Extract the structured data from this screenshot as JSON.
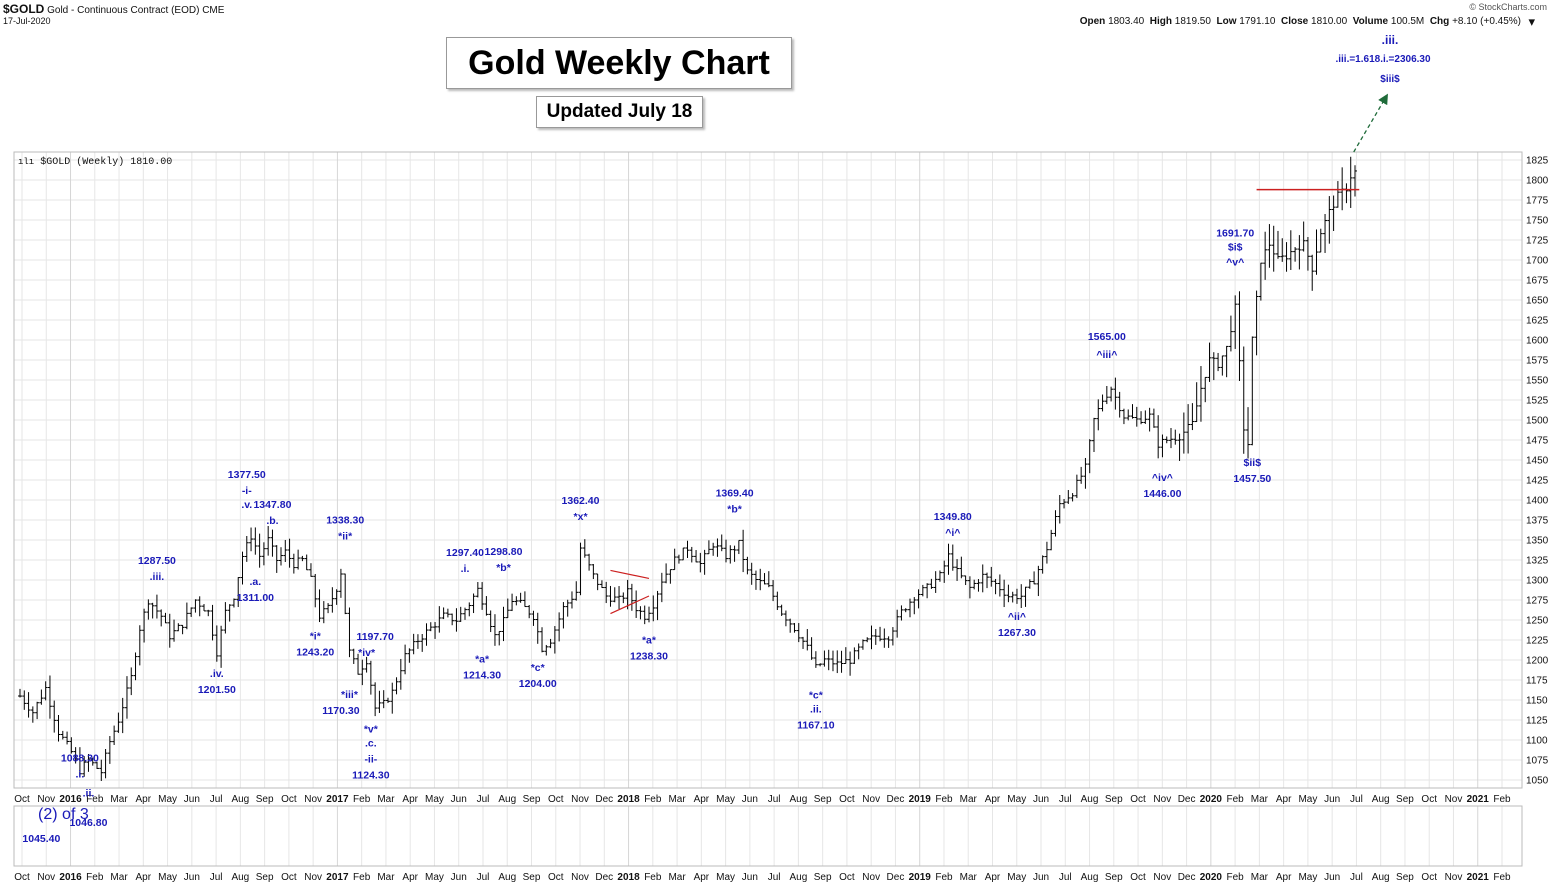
{
  "header": {
    "symbol": "$GOLD",
    "name": "Gold - Continuous Contract (EOD)",
    "exchange": "CME",
    "date": "17-Jul-2020",
    "brand": "© StockCharts.com",
    "open_label": "Open",
    "open": "1803.40",
    "high_label": "High",
    "high": "1819.50",
    "low_label": "Low",
    "low": "1791.10",
    "close_label": "Close",
    "close": "1810.00",
    "volume_label": "Volume",
    "volume": "100.5M",
    "chg_label": "Chg",
    "chg": "+8.10 (+0.45%)"
  },
  "chart_title": "Gold Weekly Chart",
  "updated": "Updated July 18",
  "legend": "$GOLD (Weekly) 1810.00",
  "colors": {
    "annotation": "#1a1ab8",
    "bar": "#000000",
    "grid": "#e6e6e6",
    "resistance": "#cc2020",
    "projection": "#1f6b3a"
  },
  "chart_data": {
    "type": "ohlc",
    "title": "Gold Weekly Chart",
    "series_name": "$GOLD (Weekly) 1810.00",
    "ylim": [
      1040,
      1835
    ],
    "yticks": [
      1050,
      1075,
      1100,
      1125,
      1150,
      1175,
      1200,
      1225,
      1250,
      1275,
      1300,
      1325,
      1350,
      1375,
      1400,
      1425,
      1450,
      1475,
      1500,
      1525,
      1550,
      1575,
      1600,
      1625,
      1650,
      1675,
      1700,
      1725,
      1750,
      1775,
      1800,
      1825
    ],
    "xticks": [
      "Oct",
      "Nov",
      "2016",
      "Feb",
      "Mar",
      "Apr",
      "May",
      "Jun",
      "Jul",
      "Aug",
      "Sep",
      "Oct",
      "Nov",
      "2017",
      "Feb",
      "Mar",
      "Apr",
      "May",
      "Jun",
      "Jul",
      "Aug",
      "Sep",
      "Oct",
      "Nov",
      "Dec",
      "2018",
      "Feb",
      "Mar",
      "Apr",
      "May",
      "Jun",
      "Jul",
      "Aug",
      "Sep",
      "Oct",
      "Nov",
      "Dec",
      "2019",
      "Feb",
      "Mar",
      "Apr",
      "May",
      "Jun",
      "Jul",
      "Aug",
      "Sep",
      "Oct",
      "Nov",
      "Dec",
      "2020",
      "Feb",
      "Mar",
      "Apr",
      "May",
      "Jun",
      "Jul",
      "Aug",
      "Sep",
      "Oct",
      "Nov",
      "2021",
      "Feb"
    ],
    "waypoints": [
      [
        0,
        1155
      ],
      [
        3,
        1135
      ],
      [
        6,
        1165
      ],
      [
        9,
        1110
      ],
      [
        12,
        1085
      ],
      [
        14,
        1062
      ],
      [
        16,
        1075
      ],
      [
        19,
        1060
      ],
      [
        21,
        1098
      ],
      [
        23,
        1125
      ],
      [
        26,
        1178
      ],
      [
        28,
        1240
      ],
      [
        30,
        1275
      ],
      [
        33,
        1255
      ],
      [
        35,
        1230
      ],
      [
        38,
        1245
      ],
      [
        41,
        1275
      ],
      [
        44,
        1260
      ],
      [
        46,
        1210
      ],
      [
        48,
        1260
      ],
      [
        50,
        1280
      ],
      [
        52,
        1330
      ],
      [
        54,
        1355
      ],
      [
        56,
        1330
      ],
      [
        58,
        1350
      ],
      [
        60,
        1325
      ],
      [
        62,
        1335
      ],
      [
        64,
        1320
      ],
      [
        66,
        1325
      ],
      [
        68,
        1300
      ],
      [
        70,
        1255
      ],
      [
        72,
        1265
      ],
      [
        74,
        1290
      ],
      [
        75,
        1310
      ],
      [
        77,
        1210
      ],
      [
        79,
        1185
      ],
      [
        81,
        1200
      ],
      [
        83,
        1140
      ],
      [
        85,
        1145
      ],
      [
        87,
        1160
      ],
      [
        90,
        1205
      ],
      [
        93,
        1225
      ],
      [
        96,
        1240
      ],
      [
        99,
        1255
      ],
      [
        102,
        1250
      ],
      [
        105,
        1270
      ],
      [
        107,
        1288
      ],
      [
        109,
        1262
      ],
      [
        111,
        1230
      ],
      [
        113,
        1248
      ],
      [
        115,
        1275
      ],
      [
        117,
        1270
      ],
      [
        120,
        1255
      ],
      [
        122,
        1215
      ],
      [
        124,
        1225
      ],
      [
        127,
        1265
      ],
      [
        130,
        1285
      ],
      [
        131,
        1340
      ],
      [
        134,
        1305
      ],
      [
        137,
        1280
      ],
      [
        140,
        1275
      ],
      [
        142,
        1285
      ],
      [
        144,
        1265
      ],
      [
        146,
        1255
      ],
      [
        148,
        1270
      ],
      [
        150,
        1300
      ],
      [
        153,
        1325
      ],
      [
        156,
        1340
      ],
      [
        159,
        1320
      ],
      [
        162,
        1345
      ],
      [
        165,
        1330
      ],
      [
        168,
        1345
      ],
      [
        170,
        1310
      ],
      [
        172,
        1300
      ],
      [
        175,
        1290
      ],
      [
        178,
        1260
      ],
      [
        181,
        1240
      ],
      [
        184,
        1215
      ],
      [
        186,
        1190
      ],
      [
        188,
        1200
      ],
      [
        191,
        1195
      ],
      [
        194,
        1200
      ],
      [
        197,
        1220
      ],
      [
        200,
        1230
      ],
      [
        203,
        1230
      ],
      [
        206,
        1260
      ],
      [
        209,
        1280
      ],
      [
        212,
        1290
      ],
      [
        215,
        1305
      ],
      [
        217,
        1330
      ],
      [
        219,
        1310
      ],
      [
        222,
        1290
      ],
      [
        225,
        1305
      ],
      [
        228,
        1295
      ],
      [
        231,
        1280
      ],
      [
        234,
        1280
      ],
      [
        237,
        1300
      ],
      [
        240,
        1340
      ],
      [
        243,
        1395
      ],
      [
        246,
        1410
      ],
      [
        249,
        1440
      ],
      [
        251,
        1500
      ],
      [
        253,
        1525
      ],
      [
        255,
        1540
      ],
      [
        258,
        1505
      ],
      [
        261,
        1500
      ],
      [
        264,
        1505
      ],
      [
        266,
        1470
      ],
      [
        268,
        1475
      ],
      [
        271,
        1480
      ],
      [
        274,
        1495
      ],
      [
        276,
        1540
      ],
      [
        278,
        1575
      ],
      [
        280,
        1570
      ],
      [
        282,
        1590
      ],
      [
        284,
        1640
      ],
      [
        285,
        1570
      ],
      [
        286,
        1490
      ],
      [
        287,
        1470
      ],
      [
        288,
        1600
      ],
      [
        290,
        1700
      ],
      [
        292,
        1720
      ],
      [
        294,
        1700
      ],
      [
        296,
        1705
      ],
      [
        298,
        1715
      ],
      [
        300,
        1720
      ],
      [
        302,
        1690
      ],
      [
        304,
        1735
      ],
      [
        306,
        1760
      ],
      [
        308,
        1780
      ],
      [
        310,
        1790
      ],
      [
        311,
        1805
      ],
      [
        312,
        1810
      ]
    ],
    "annotations": [
      {
        "text": "1088.30",
        "price": 1088.3,
        "week": 14,
        "dir": "below",
        "offset": 8
      },
      {
        "text": ".i.",
        "price": 1088.3,
        "week": 14,
        "dir": "below",
        "offset": 24
      },
      {
        "text": ".ii.",
        "price": 1046.8,
        "week": 16,
        "dir": "below",
        "offset": 10
      },
      {
        "text": "1046.80",
        "price": 1046.8,
        "week": 16,
        "dir": "below",
        "offset": 28
      },
      {
        "text": "(2) of 3",
        "price": 1045.4,
        "week": 5,
        "dir": "below",
        "offset": 26,
        "big": true
      },
      {
        "text": "1045.40",
        "price": 1045.4,
        "week": 5,
        "dir": "below",
        "offset": 44
      },
      {
        "text": "1287.50",
        "price": 1287.5,
        "week": 32,
        "dir": "above",
        "offset": 34
      },
      {
        "text": ".iii.",
        "price": 1287.5,
        "week": 32,
        "dir": "above",
        "offset": 18
      },
      {
        "text": ".iv.",
        "price": 1201.5,
        "week": 46,
        "dir": "below",
        "offset": 14
      },
      {
        "text": "1201.50",
        "price": 1201.5,
        "week": 46,
        "dir": "below",
        "offset": 30
      },
      {
        "text": "1377.50",
        "price": 1377.5,
        "week": 53,
        "dir": "above",
        "offset": 48
      },
      {
        "text": "-i-",
        "price": 1377.5,
        "week": 53,
        "dir": "above",
        "offset": 32
      },
      {
        "text": ".v.",
        "price": 1377.5,
        "week": 53,
        "dir": "above",
        "offset": 18
      },
      {
        "text": "1347.80",
        "price": 1347.8,
        "week": 59,
        "dir": "above",
        "offset": 42
      },
      {
        "text": ".b.",
        "price": 1347.8,
        "week": 59,
        "dir": "above",
        "offset": 26
      },
      {
        "text": ".a.",
        "price": 1311,
        "week": 55,
        "dir": "below",
        "offset": 10
      },
      {
        "text": "1311.00",
        "price": 1311,
        "week": 55,
        "dir": "below",
        "offset": 26
      },
      {
        "text": "1338.30",
        "price": 1338.3,
        "week": 76,
        "dir": "above",
        "offset": 34
      },
      {
        "text": "*ii*",
        "price": 1338.3,
        "week": 76,
        "dir": "above",
        "offset": 18
      },
      {
        "text": "*i*",
        "price": 1243.2,
        "week": 69,
        "dir": "below",
        "offset": 10
      },
      {
        "text": "1243.20",
        "price": 1243.2,
        "week": 69,
        "dir": "below",
        "offset": 26
      },
      {
        "text": "1197.70",
        "price": 1197.7,
        "week": 83,
        "dir": "above",
        "offset": 30
      },
      {
        "text": "*iv*",
        "price": 1197.7,
        "week": 81,
        "dir": "above",
        "offset": 14
      },
      {
        "text": "*iii*",
        "price": 1170.3,
        "week": 77,
        "dir": "below",
        "offset": 10
      },
      {
        "text": "1170.30",
        "price": 1170.3,
        "week": 75,
        "dir": "below",
        "offset": 26
      },
      {
        "text": "*v*",
        "price": 1124.3,
        "week": 82,
        "dir": "below",
        "offset": 8
      },
      {
        "text": ".c.",
        "price": 1124.3,
        "week": 82,
        "dir": "below",
        "offset": 22
      },
      {
        "text": "-ii-",
        "price": 1124.3,
        "week": 82,
        "dir": "below",
        "offset": 38
      },
      {
        "text": "1124.30",
        "price": 1124.3,
        "week": 82,
        "dir": "below",
        "offset": 54
      },
      {
        "text": "1297.40",
        "price": 1297.4,
        "week": 104,
        "dir": "above",
        "offset": 34
      },
      {
        "text": ".i.",
        "price": 1297.4,
        "week": 104,
        "dir": "above",
        "offset": 18
      },
      {
        "text": "1298.80",
        "price": 1298.8,
        "week": 113,
        "dir": "above",
        "offset": 34
      },
      {
        "text": "*b*",
        "price": 1298.8,
        "week": 113,
        "dir": "above",
        "offset": 18
      },
      {
        "text": "*a*",
        "price": 1214.3,
        "week": 108,
        "dir": "below",
        "offset": 10
      },
      {
        "text": "1214.30",
        "price": 1214.3,
        "week": 108,
        "dir": "below",
        "offset": 26
      },
      {
        "text": "*c*",
        "price": 1204,
        "week": 121,
        "dir": "below",
        "offset": 10
      },
      {
        "text": "1204.00",
        "price": 1204,
        "week": 121,
        "dir": "below",
        "offset": 26
      },
      {
        "text": "1362.40",
        "price": 1362.4,
        "week": 131,
        "dir": "above",
        "offset": 34
      },
      {
        "text": "*x*",
        "price": 1362.4,
        "week": 131,
        "dir": "above",
        "offset": 18
      },
      {
        "text": "*a*",
        "price": 1238.3,
        "week": 147,
        "dir": "below",
        "offset": 10
      },
      {
        "text": "1238.30",
        "price": 1238.3,
        "week": 147,
        "dir": "below",
        "offset": 26
      },
      {
        "text": "1369.40",
        "price": 1369.4,
        "week": 167,
        "dir": "above",
        "offset": 36
      },
      {
        "text": "*b*",
        "price": 1369.4,
        "week": 167,
        "dir": "above",
        "offset": 20
      },
      {
        "text": "*c*",
        "price": 1167.1,
        "week": 186,
        "dir": "below",
        "offset": 8
      },
      {
        "text": ".ii.",
        "price": 1167.1,
        "week": 186,
        "dir": "below",
        "offset": 22
      },
      {
        "text": "1167.10",
        "price": 1167.1,
        "week": 186,
        "dir": "below",
        "offset": 38
      },
      {
        "text": "1349.80",
        "price": 1349.8,
        "week": 218,
        "dir": "above",
        "offset": 28
      },
      {
        "text": "^i^",
        "price": 1349.8,
        "week": 218,
        "dir": "above",
        "offset": 12
      },
      {
        "text": "^ii^",
        "price": 1267.3,
        "week": 233,
        "dir": "below",
        "offset": 10
      },
      {
        "text": "1267.30",
        "price": 1267.3,
        "week": 233,
        "dir": "below",
        "offset": 26
      },
      {
        "text": "1565.00",
        "price": 1565,
        "week": 254,
        "dir": "above",
        "offset": 36
      },
      {
        "text": "^iii^",
        "price": 1565,
        "week": 254,
        "dir": "above",
        "offset": 18
      },
      {
        "text": "^iv^",
        "price": 1446,
        "week": 267,
        "dir": "below",
        "offset": 14
      },
      {
        "text": "1446.00",
        "price": 1446,
        "week": 267,
        "dir": "below",
        "offset": 30
      },
      {
        "text": "1691.70",
        "price": 1691.7,
        "week": 284,
        "dir": "above",
        "offset": 38
      },
      {
        "text": "$i$",
        "price": 1691.7,
        "week": 284,
        "dir": "above",
        "offset": 24
      },
      {
        "text": "^v^",
        "price": 1691.7,
        "week": 284,
        "dir": "above",
        "offset": 9
      },
      {
        "text": "$ii$",
        "price": 1457.5,
        "week": 288,
        "dir": "below",
        "offset": 8
      },
      {
        "text": "1457.50",
        "price": 1457.5,
        "week": 288,
        "dir": "below",
        "offset": 24
      }
    ],
    "projection": {
      "label_top": ".iii.",
      "label_target": ".iii.=1.618.i.=2306.30",
      "label_wave": "$iii$"
    },
    "resistance_level": 1788,
    "triangle": {
      "start_week": 138,
      "end_week": 147
    },
    "lower_panel": {
      "label": "(2) of 3"
    }
  }
}
